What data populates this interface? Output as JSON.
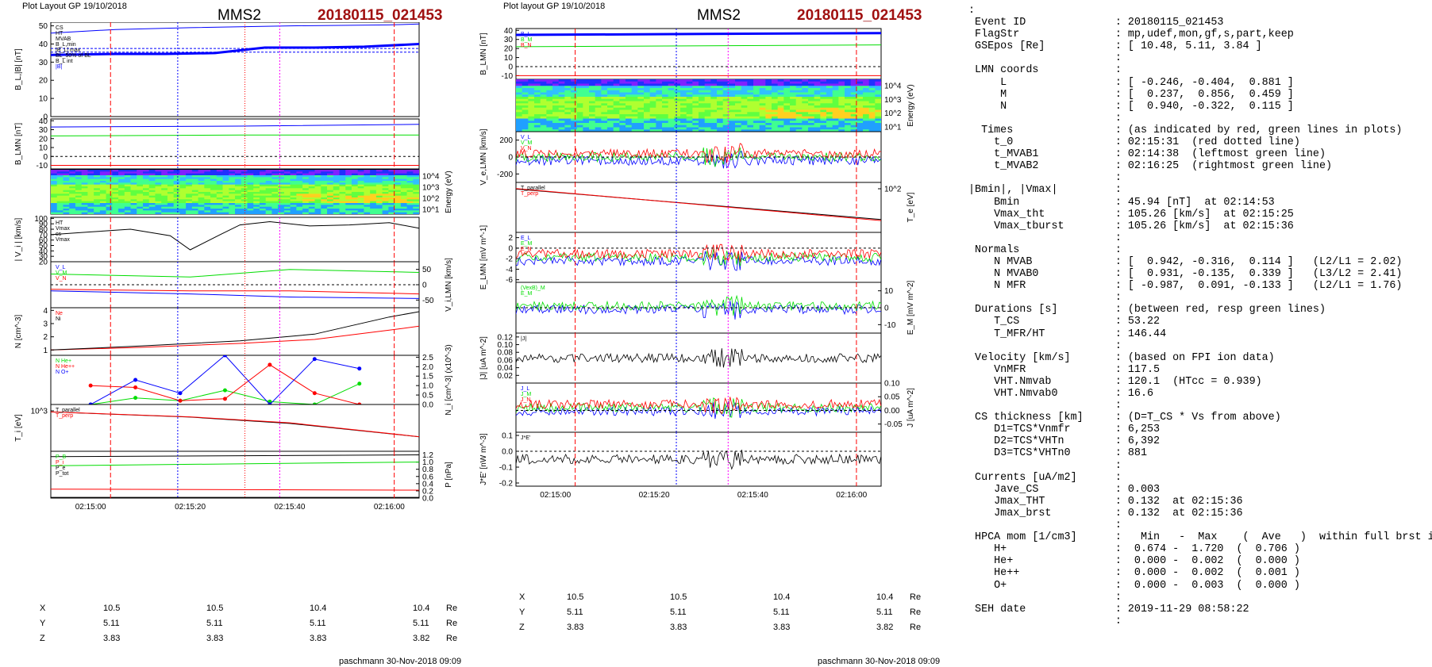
{
  "left_figure": {
    "header": "Plot Layout GP 19/10/2018",
    "title": "MMS2",
    "event": "20180115_021453",
    "footer": "paschmann 30-Nov-2018 09:09",
    "time_ticks": [
      "02:15:00",
      "02:15:20",
      "02:15:40",
      "02:16:00"
    ],
    "position_rows": [
      {
        "label": "X",
        "values": [
          "10.5",
          "10.5",
          "10.4",
          "10.4"
        ],
        "unit": "Re"
      },
      {
        "label": "Y",
        "values": [
          "5.11",
          "5.11",
          "5.11",
          "5.11"
        ],
        "unit": "Re"
      },
      {
        "label": "Z",
        "values": [
          "3.83",
          "3.83",
          "3.83",
          "3.82"
        ],
        "unit": "Re"
      }
    ]
  },
  "right_figure": {
    "header": "Plot layout GP 19/10/2018",
    "title": "MMS2",
    "event": "20180115_021453",
    "footer": "paschmann 30-Nov-2018 09:09",
    "time_ticks": [
      "02:15:00",
      "02:15:20",
      "02:15:40",
      "02:16:00"
    ],
    "position_rows": [
      {
        "label": "X",
        "values": [
          "10.5",
          "10.5",
          "10.4",
          "10.4"
        ],
        "unit": "Re"
      },
      {
        "label": "Y",
        "values": [
          "5.11",
          "5.11",
          "5.11",
          "5.11"
        ],
        "unit": "Re"
      },
      {
        "label": "Z",
        "values": [
          "3.83",
          "3.83",
          "3.83",
          "3.82"
        ],
        "unit": "Re"
      }
    ]
  },
  "colors": {
    "red": "#ff0000",
    "green": "#00dd00",
    "blue": "#0000ff",
    "magenta": "#ff00ff",
    "black": "#000000",
    "gray": "#808080",
    "title_red": "#a01010"
  },
  "summary_lines": [
    ":",
    " Event ID              : 20180115_021453",
    " FlagStr               : mp,udef,mon,gf,s,part,keep",
    " GSEpos [Re]           : [ 10.48, 5.11, 3.84 ]",
    "                       :",
    " LMN coords            :",
    "     L                 : [ -0.246, -0.404,  0.881 ]",
    "     M                 : [  0.237,  0.856,  0.459 ]",
    "     N                 : [  0.940, -0.322,  0.115 ]",
    "                       :",
    "  Times                : (as indicated by red, green lines in plots)",
    "    t_0                : 02:15:31  (red dotted line)",
    "    t_MVAB1            : 02:14:38  (leftmost green line)",
    "    t_MVAB2            : 02:16:25  (rightmost green line)",
    "                       :",
    "|Bmin|, |Vmax|         :",
    "    Bmin               : 45.94 [nT]  at 02:14:53",
    "    Vmax_tht           : 105.26 [km/s]  at 02:15:25",
    "    Vmax_tburst        : 105.26 [km/s]  at 02:15:36",
    "                       :",
    " Normals               :",
    "    N MVAB             : [  0.942, -0.316,  0.114 ]   (L2/L1 = 2.02)",
    "    N MVAB0            : [  0.931, -0.135,  0.339 ]   (L3/L2 = 2.41)",
    "    N MFR              : [ -0.987,  0.091, -0.133 ]   (L2/L1 = 1.76)",
    "                       :",
    " Durations [s]         : (between red, resp green lines)",
    "    T_CS               : 53.22",
    "    T_MFR/HT           : 146.44",
    "                       :",
    " Velocity [km/s]       : (based on FPI ion data)",
    "    VnMFR              : 117.5",
    "    VHT.Nmvab          : 120.1  (HTcc = 0.939)",
    "    VHT.Nmvab0         : 16.6",
    "                       :",
    " CS thickness [km]     : (D=T_CS * Vs from above)",
    "    D1=TCS*Vnmfr       : 6,253",
    "    D2=TCS*VHTn        : 6,392",
    "    D3=TCS*VHTn0       : 881",
    "                       :",
    " Currents [uA/m2]      :",
    "    Jave_CS            : 0.003",
    "    Jmax_THT           : 0.132  at 02:15:36",
    "    Jmax_brst          : 0.132  at 02:15:36",
    "                       :",
    " HPCA mom [1/cm3]      :   Min   -  Max    (  Ave   )  within full brst int",
    "    H+                 :  0.674 -  1.720  (  0.706 )",
    "    He+                :  0.000 -  0.002  (  0.000 )",
    "    He++               :  0.000 -  0.002  (  0.001 )",
    "    O+                 :  0.000 -  0.003  (  0.000 )",
    "                       :",
    " SEH date              : 2019-11-29 08:58:22",
    "                       :"
  ],
  "chart_data": [
    {
      "type": "line",
      "title": "MMS2 20180115_021453",
      "time_ticks": [
        "02:15:00",
        "02:15:20",
        "02:15:40",
        "02:16:00"
      ],
      "time_range_s": [
        -8,
        66
      ],
      "vertical_markers_s": {
        "red_dashed": [
          4,
          61
        ],
        "red_dotted": [
          31
        ],
        "blue_dotted": [
          17.5
        ],
        "magenta_dotted": [
          38
        ]
      },
      "panels": [
        {
          "ylabel": "B_L,|B| [nT]",
          "yticks": [
            "50",
            "40",
            "30",
            "20",
            "10",
            "0"
          ],
          "ylim": [
            0,
            52
          ],
          "legend": [
            "CS",
            "HT",
            "MVAB",
            "B_L,min",
            "|B_L| max",
            "BL_50% of BL",
            "B_L int",
            "|B|"
          ],
          "series": [
            {
              "name": "|B|",
              "x": [
                -8,
                5,
                20,
                40,
                60,
                66
              ],
              "values": [
                46,
                48,
                49,
                50,
                50.5,
                51
              ]
            },
            {
              "name": "B_L",
              "x": [
                -8,
                5,
                15,
                25,
                35,
                45,
                55,
                66
              ],
              "values": [
                34,
                34.5,
                34.5,
                35,
                38,
                38,
                38.5,
                40
              ]
            }
          ],
          "reference_lines": [
            35.5,
            37.5
          ]
        },
        {
          "ylabel": "B_LMN [nT]",
          "yticks": [
            "40",
            "30",
            "20",
            "10",
            "0",
            "-10"
          ],
          "ylim": [
            -14,
            42
          ],
          "series": [
            {
              "name": "B_L",
              "x": [
                -8,
                30,
                66
              ],
              "values": [
                33,
                34,
                36
              ]
            },
            {
              "name": "B_M",
              "x": [
                -8,
                30,
                66
              ],
              "values": [
                23,
                24,
                24
              ]
            },
            {
              "name": "B_N",
              "x": [
                -8,
                30,
                66
              ],
              "values": [
                -10,
                -10,
                -10
              ]
            }
          ]
        },
        {
          "ylabel": "Energy (eV)",
          "yticks": [
            "10^4",
            "10^3",
            "10^2",
            "10^1"
          ],
          "kind": "spectrogram"
        },
        {
          "ylabel": "| V_i | [km/s]",
          "yticks": [
            "100",
            "90",
            "80",
            "70",
            "60",
            "50",
            "40",
            "30",
            "20"
          ],
          "ylim": [
            20,
            102
          ],
          "legend": [
            "HT",
            "Vmax",
            "cs",
            "Vmax"
          ],
          "series": [
            {
              "name": "|V_i|",
              "x": [
                -8,
                0,
                8,
                16,
                20,
                26,
                30,
                36,
                44,
                52,
                60,
                66
              ],
              "values": [
                70,
                75,
                80,
                68,
                42,
                70,
                88,
                94,
                86,
                88,
                92,
                82
              ]
            }
          ]
        },
        {
          "ylabel": "V_i,LMN [km/s]",
          "yticks": [
            "50",
            "0",
            "-50"
          ],
          "ylim": [
            -75,
            75
          ],
          "legend": [
            "V_L",
            "V_M",
            "V_N"
          ],
          "series": [
            {
              "name": "V_L",
              "x": [
                -8,
                20,
                40,
                66
              ],
              "values": [
                -20,
                -30,
                -40,
                -45
              ]
            },
            {
              "name": "V_M",
              "x": [
                -8,
                20,
                40,
                66
              ],
              "values": [
                35,
                25,
                50,
                40
              ]
            },
            {
              "name": "V_N",
              "x": [
                -8,
                20,
                40,
                66
              ],
              "values": [
                -15,
                -20,
                -20,
                -30
              ]
            }
          ]
        },
        {
          "ylabel": "N [cm^-3]",
          "yticks": [
            "4",
            "3",
            "2",
            "1"
          ],
          "ylim": [
            0.6,
            4.2
          ],
          "legend": [
            "Ne",
            "Ni"
          ],
          "series": [
            {
              "name": "Ne",
              "x": [
                -8,
                10,
                30,
                45,
                60,
                66
              ],
              "values": [
                1.0,
                1.2,
                1.5,
                1.8,
                2.5,
                2.8
              ]
            },
            {
              "name": "Ni",
              "x": [
                -8,
                10,
                30,
                45,
                60,
                66
              ],
              "values": [
                1.0,
                1.3,
                1.7,
                2.2,
                3.5,
                3.9
              ]
            }
          ]
        },
        {
          "ylabel": "N_i [cm^-3] (x10^-3)",
          "yticks": [
            "2.5",
            "2.0",
            "1.5",
            "1.0",
            "0.5",
            "0.0"
          ],
          "ylim": [
            0,
            2.6
          ],
          "kind": "scatter-line",
          "legend": [
            "N He+",
            "N He++",
            "N O+"
          ],
          "series": [
            {
              "name": "N He+",
              "x": [
                0,
                9,
                18,
                27,
                36,
                45,
                54
              ],
              "values": [
                0.0,
                0.35,
                0.2,
                0.75,
                0.15,
                0.0,
                1.1
              ]
            },
            {
              "name": "N He++",
              "x": [
                0,
                9,
                18,
                27,
                36,
                45,
                54
              ],
              "values": [
                1.0,
                0.9,
                0.2,
                0.3,
                2.1,
                0.6,
                0.0
              ]
            },
            {
              "name": "N O+",
              "x": [
                0,
                9,
                18,
                27,
                36,
                45,
                54
              ],
              "values": [
                0.0,
                1.3,
                0.6,
                2.6,
                0.0,
                2.4,
                1.9
              ]
            }
          ]
        },
        {
          "ylabel": "T_i [eV]",
          "yticks": [
            "10^3"
          ],
          "legend": [
            "T_parallel",
            "T_perp"
          ],
          "series": [
            {
              "name": "T_parallel",
              "x": [
                -8,
                20,
                40,
                66
              ],
              "values": [
                1200,
                1000,
                800,
                500
              ]
            },
            {
              "name": "T_perp",
              "x": [
                -8,
                20,
                40,
                66
              ],
              "values": [
                950,
                800,
                650,
                400
              ]
            }
          ]
        },
        {
          "ylabel": "P [nPa]",
          "yticks": [
            "1.2",
            "1.0",
            "0.8",
            "0.6",
            "0.4",
            "0.2",
            "0.0"
          ],
          "ylim": [
            0,
            1.3
          ],
          "legend": [
            "P_B",
            "P_i",
            "P_e",
            "P_tot"
          ],
          "series": [
            {
              "name": "P_tot",
              "x": [
                -8,
                66
              ],
              "values": [
                1.15,
                1.2
              ]
            },
            {
              "name": "P_B",
              "x": [
                -8,
                66
              ],
              "values": [
                0.9,
                1.0
              ]
            },
            {
              "name": "P_i",
              "x": [
                -8,
                66
              ],
              "values": [
                0.25,
                0.22
              ]
            },
            {
              "name": "P_e",
              "x": [
                -8,
                66
              ],
              "values": [
                0.02,
                0.02
              ]
            }
          ]
        }
      ]
    },
    {
      "type": "line",
      "title": "MMS2 20180115_021453",
      "time_ticks": [
        "02:15:00",
        "02:15:20",
        "02:15:40",
        "02:16:00"
      ],
      "time_range_s": [
        -8,
        66
      ],
      "vertical_markers_s": {
        "red_dashed": [
          4,
          61
        ],
        "blue_dotted": [
          24.5
        ],
        "magenta_dotted": [
          35
        ]
      },
      "panels": [
        {
          "ylabel": "B_LMN [nT]",
          "yticks": [
            "40",
            "30",
            "20",
            "10",
            "0",
            "-10"
          ],
          "ylim": [
            -14,
            42
          ],
          "legend": [
            "B_L",
            "B_M",
            "B_N"
          ],
          "series": [
            {
              "name": "B_L",
              "x": [
                -8,
                66
              ],
              "values": [
                35,
                37
              ]
            },
            {
              "name": "B_M",
              "x": [
                -8,
                66
              ],
              "values": [
                22,
                24
              ]
            },
            {
              "name": "B_N",
              "x": [
                -8,
                66
              ],
              "values": [
                -10,
                -10
              ]
            }
          ]
        },
        {
          "ylabel": "Energy (eV)",
          "yticks": [
            "10^4",
            "10^3",
            "10^2",
            "10^1"
          ],
          "kind": "spectrogram"
        },
        {
          "ylabel": "V_e,LMN [km/s]",
          "yticks": [
            "200",
            "0",
            "-200"
          ],
          "ylim": [
            -300,
            300
          ],
          "legend": [
            "V_L",
            "V_M",
            "V_N"
          ],
          "kind": "noisy"
        },
        {
          "ylabel": "T_e [eV]",
          "yticks": [
            "10^2"
          ],
          "legend": [
            "T_parallel",
            "T_perp"
          ],
          "series": [
            {
              "name": "T_parallel",
              "x": [
                -8,
                66
              ],
              "values": [
                200,
                60
              ]
            },
            {
              "name": "T_perp",
              "x": [
                -8,
                66
              ],
              "values": [
                180,
                45
              ]
            }
          ]
        },
        {
          "ylabel": "E_LMN [mV m^-1]",
          "yticks": [
            "2",
            "0",
            "-2",
            "-4",
            "-6"
          ],
          "ylim": [
            -6.5,
            3
          ],
          "legend": [
            "E_L",
            "E_M",
            "E_N"
          ],
          "kind": "noisy"
        },
        {
          "ylabel": "E_M [mV m^-2]",
          "yticks": [
            "10",
            "0",
            "-10"
          ],
          "ylim": [
            -15,
            15
          ],
          "legend": [
            "(VexB)_M",
            "E_M"
          ],
          "kind": "noisy"
        },
        {
          "ylabel": "|J| [uA m^-2]",
          "yticks": [
            "0.12",
            "0.10",
            "0.08",
            "0.06",
            "0.04",
            "0.02"
          ],
          "ylim": [
            0.0,
            0.13
          ],
          "legend": [
            "|J|"
          ],
          "kind": "noisy"
        },
        {
          "ylabel": "J [uA m^-2]",
          "yticks": [
            "0.10",
            "0.05",
            "0.00",
            "-0.05"
          ],
          "ylim": [
            -0.08,
            0.1
          ],
          "legend": [
            "J_L",
            "J_M",
            "J_N"
          ],
          "kind": "noisy"
        },
        {
          "ylabel": "J*E' [nW m^-3]",
          "yticks": [
            "0.1",
            "0.0",
            "-0.1",
            "-0.2"
          ],
          "ylim": [
            -0.22,
            0.12
          ],
          "legend": [
            "J*E'"
          ],
          "kind": "noisy"
        }
      ]
    }
  ]
}
